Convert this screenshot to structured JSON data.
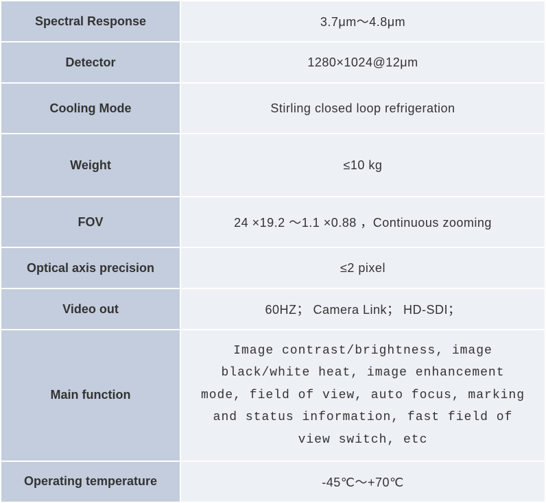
{
  "table": {
    "header_bg": "#c4cddd",
    "value_bg": "#edf0f5",
    "text_color": "#333333",
    "rows": [
      {
        "label": "Spectral Response",
        "value": "3.7μm～4.8μm",
        "row_class": "row-short"
      },
      {
        "label": "Detector",
        "value": "1280×1024@12μm",
        "row_class": "row-short"
      },
      {
        "label": "Cooling Mode",
        "value": "Stirling closed loop refrigeration",
        "row_class": "row-med"
      },
      {
        "label": "Weight",
        "value": "≤10 kg",
        "row_class": "row-tall"
      },
      {
        "label": "FOV",
        "value": "24   ×19.2   ～1.1   ×0.88   ，Continuous zooming",
        "row_class": "row-med"
      },
      {
        "label": "Optical axis precision",
        "value": "≤2 pixel",
        "row_class": "row-short"
      },
      {
        "label": "Video out",
        "value": "60HZ； Camera Link； HD-SDI；",
        "row_class": "row-short"
      },
      {
        "label": "Main function",
        "value": "Image contrast/brightness, image black/white heat, image enhancement mode, field of view, auto focus, marking and status information, fast field of view switch, etc",
        "row_class": "row-big",
        "value_class": "mainfn"
      },
      {
        "label": "Operating temperature",
        "value": "-45℃～+70℃",
        "row_class": "row-short"
      }
    ]
  }
}
